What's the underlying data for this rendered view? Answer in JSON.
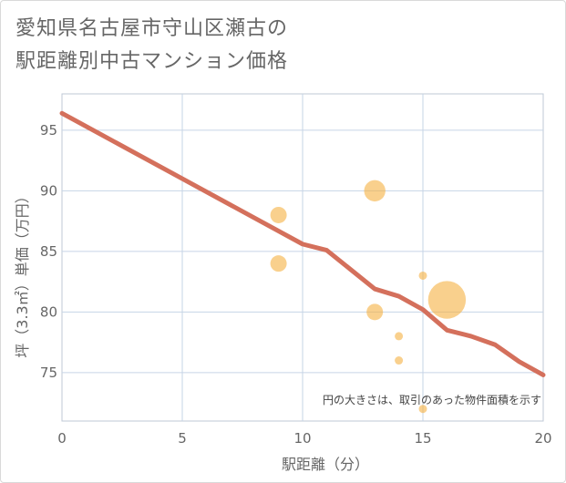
{
  "title": {
    "line1": "愛知県名古屋市守山区瀬古の",
    "line2": "駅距離別中古マンション価格"
  },
  "note": "円の大きさは、取引のあった物件面積を示す",
  "chart_data": {
    "type": "scatter",
    "xlabel": "駅距離（分）",
    "ylabel": "坪（3.3㎡）単価（万円）",
    "xlim": [
      0,
      20
    ],
    "ylim": [
      71,
      98
    ],
    "xticks": [
      0,
      5,
      10,
      15,
      20
    ],
    "yticks": [
      75,
      80,
      85,
      90,
      95
    ],
    "grid": true,
    "colors": {
      "bubble": "#f5b041",
      "line": "#d4705c",
      "grid": "#c6d4e6"
    },
    "points": [
      {
        "x": 9,
        "y": 88,
        "size": 1.0
      },
      {
        "x": 9,
        "y": 84,
        "size": 1.0
      },
      {
        "x": 13,
        "y": 90,
        "size": 1.3
      },
      {
        "x": 13,
        "y": 80,
        "size": 1.0
      },
      {
        "x": 14,
        "y": 78,
        "size": 0.5
      },
      {
        "x": 14,
        "y": 76,
        "size": 0.5
      },
      {
        "x": 15,
        "y": 83,
        "size": 0.5
      },
      {
        "x": 15,
        "y": 72,
        "size": 0.5
      },
      {
        "x": 16,
        "y": 81,
        "size": 2.3
      }
    ],
    "trend": {
      "x": [
        0,
        5,
        10,
        11,
        13,
        14,
        15,
        16,
        17,
        18,
        19,
        20
      ],
      "y": [
        96.4,
        91.0,
        85.6,
        85.1,
        81.9,
        81.3,
        80.2,
        78.5,
        78.0,
        77.3,
        75.9,
        74.8
      ]
    }
  }
}
